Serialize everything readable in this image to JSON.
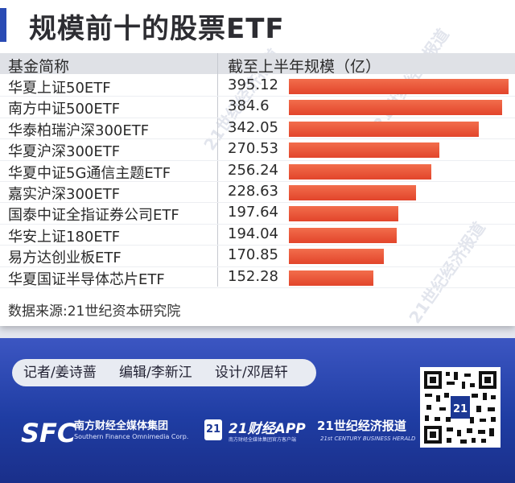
{
  "header": {
    "title": "规模前十的股票ETF",
    "accent_color": "#2a4bb4"
  },
  "watermark": "21世纪经济报道",
  "table": {
    "col_name_header": "基金简称",
    "col_value_header": "截至上半年规模（亿）"
  },
  "chart_data": {
    "type": "bar",
    "orientation": "horizontal",
    "title": "规模前十的股票ETF",
    "categories": [
      "华夏上证50ETF",
      "南方中证500ETF",
      "华泰柏瑞沪深300ETF",
      "华夏沪深300ETF",
      "华夏中证5G通信主题ETF",
      "嘉实沪深300ETF",
      "国泰中证全指证券公司ETF",
      "华安上证180ETF",
      "易方达创业板ETF",
      "华夏国证半导体芯片ETF"
    ],
    "value_labels": [
      "395.12",
      "384.6",
      "342.05",
      "270.53",
      "256.24",
      "228.63",
      "197.64",
      "194.04",
      "170.85",
      "152.28"
    ],
    "values": [
      395.12,
      384.6,
      342.05,
      270.53,
      256.24,
      228.63,
      197.64,
      194.04,
      170.85,
      152.28
    ],
    "xlabel": "截至上半年规模（亿）",
    "ylabel": "基金简称",
    "bar_color": "#e8502f",
    "grid": false,
    "legend": "none"
  },
  "source": "数据来源:21世纪资本研究院",
  "credits": {
    "reporter": "记者/姜诗蔷",
    "editor": "编辑/李新江",
    "design": "设计/邓居轩"
  },
  "branding": {
    "sfc_logo": "SFC",
    "sfc_name_cn": "南方财经全媒体集团",
    "sfc_name_en": "Southern Finance Omnimedia Corp.",
    "badge": "21",
    "app_name": "21财经APP",
    "app_sub": "南方财经全媒体集团官方客户端",
    "herald_cn": "21世纪经济报道",
    "herald_en": "21st CENTURY BUSINESS HERALD",
    "qr_icon": "qr-code-icon"
  }
}
